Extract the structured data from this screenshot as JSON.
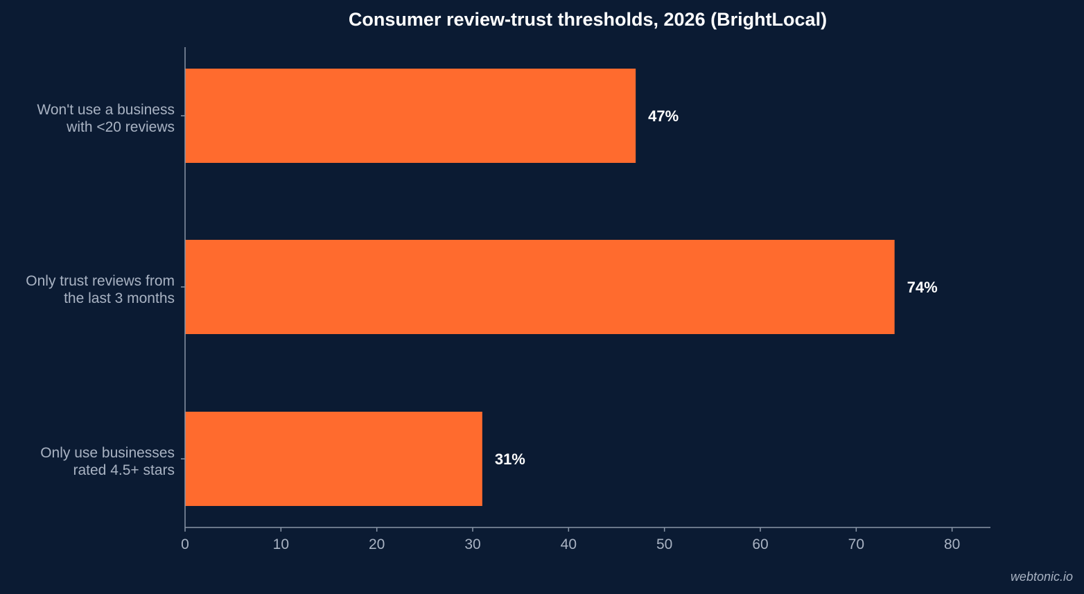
{
  "chart_data": {
    "type": "bar",
    "orientation": "horizontal",
    "title": "Consumer review-trust thresholds, 2026 (BrightLocal)",
    "categories": [
      [
        "Won't use a business",
        "with <20 reviews"
      ],
      [
        "Only trust reviews from",
        "the last 3 months"
      ],
      [
        "Only use businesses",
        "rated 4.5+ stars"
      ]
    ],
    "values": [
      47,
      74,
      31
    ],
    "value_labels": [
      "47%",
      "74%",
      "31%"
    ],
    "xlim": [
      0,
      84
    ],
    "xticks": [
      0,
      10,
      20,
      30,
      40,
      50,
      60,
      70,
      80
    ],
    "xlabel": "",
    "ylabel": "",
    "grid": false,
    "legend": "none",
    "bar_color": "#ff6b2e",
    "background_color": "#0b1b33"
  },
  "watermark": "webtonic.io"
}
